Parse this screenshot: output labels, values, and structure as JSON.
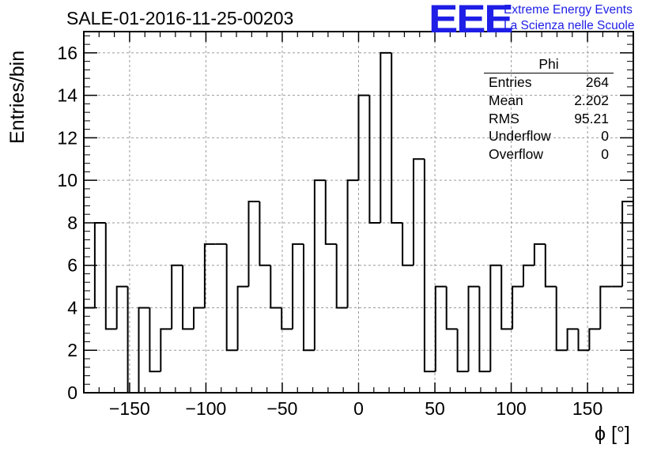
{
  "chart_data": {
    "type": "bar",
    "title": "SALE-01-2016-11-25-00203",
    "xlabel": "ϕ [°]",
    "ylabel": "Entries/bin",
    "xlim": [
      -180,
      180
    ],
    "ylim": [
      0,
      17
    ],
    "grid": true,
    "bin_width": 7.2,
    "x_ticks": [
      -150,
      -100,
      -50,
      0,
      50,
      100,
      150
    ],
    "x_tick_labels": [
      "−150",
      "−100",
      "−50",
      "0",
      "50",
      "100",
      "150"
    ],
    "y_ticks": [
      0,
      2,
      4,
      6,
      8,
      10,
      12,
      14,
      16
    ],
    "y_tick_labels": [
      "0",
      "2",
      "4",
      "6",
      "8",
      "10",
      "12",
      "14",
      "16"
    ],
    "values": [
      4,
      8,
      3,
      5,
      0,
      4,
      1,
      3,
      6,
      3,
      4,
      7,
      7,
      2,
      5,
      9,
      6,
      4,
      3,
      7,
      2,
      10,
      7,
      4,
      10,
      14,
      8,
      16,
      8,
      6,
      11,
      1,
      5,
      3,
      1,
      5,
      1,
      6,
      3,
      5,
      6,
      7,
      5,
      2,
      3,
      2,
      3,
      5,
      5,
      9
    ]
  },
  "stats": {
    "name": "Phi",
    "rows": [
      {
        "label": "Entries",
        "value": "264"
      },
      {
        "label": "Mean",
        "value": "2.202"
      },
      {
        "label": "RMS",
        "value": "95.21"
      },
      {
        "label": "Underflow",
        "value": "0"
      },
      {
        "label": "Overflow",
        "value": "0"
      }
    ]
  },
  "logo": {
    "mark": "EEE",
    "line1": "Extreme Energy Events",
    "line2": "La Scienza nelle Scuole"
  }
}
